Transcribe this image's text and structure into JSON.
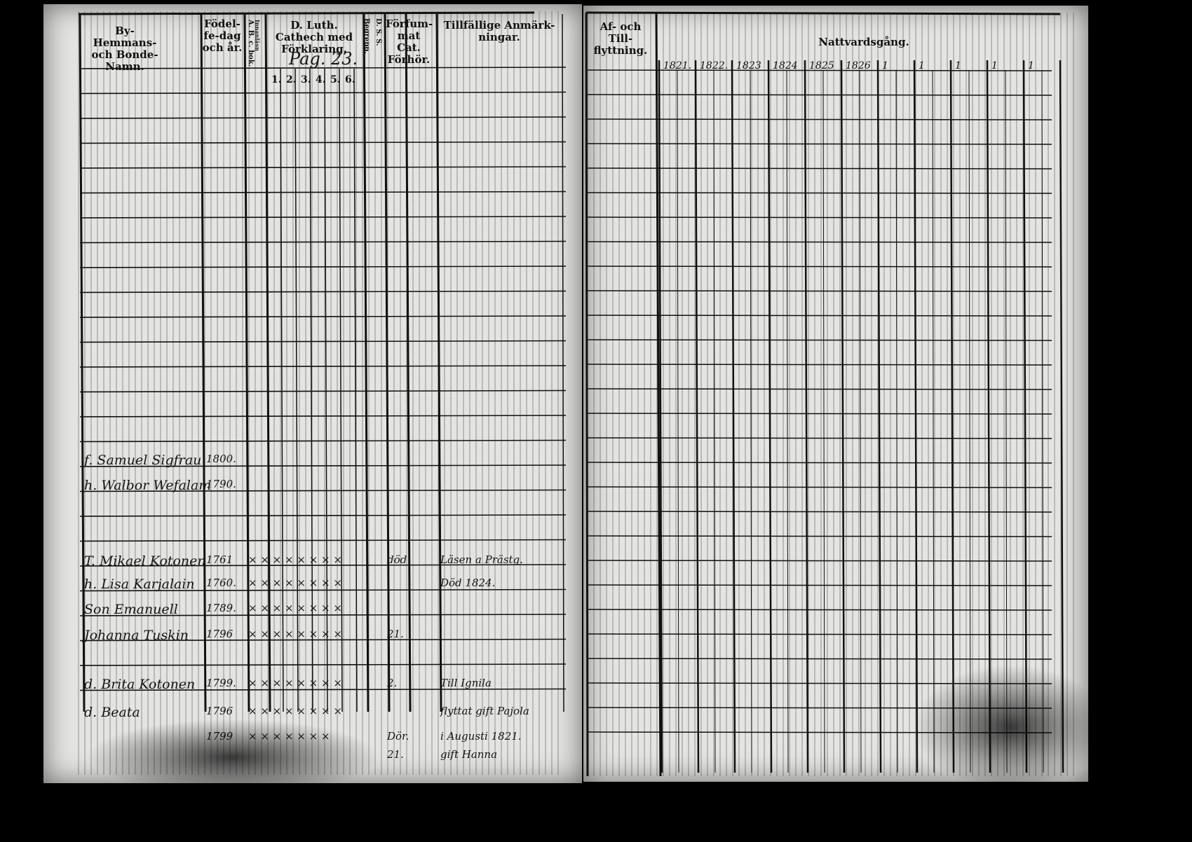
{
  "left_page": {
    "headers": {
      "name": "By- Hemmans-och Bonde-Namn.",
      "birth": "Födel-fe-dag och år.",
      "abc": "A. B. c. bok.",
      "innanlasn": "Innanläsn",
      "catech": "D. Luth. Cathech med Förklaring.",
      "page_note": "Pag. 23.",
      "catech_subcols": [
        "1.",
        "2.",
        "3.",
        "4.",
        "5.",
        "6."
      ],
      "begrepp": "Begrepp.",
      "dss": "D. S. S.",
      "forsummat": "Förfum-mat Cat. Förhör.",
      "anmarkningar": "Tillfällige Anmärk-ningar."
    },
    "entries": [
      {
        "name": "f. Samuel Sigfrau",
        "year": "1800.",
        "marks": "",
        "forhor": "",
        "note": ""
      },
      {
        "name": "h. Walbor Wefalam",
        "year": "1790.",
        "marks": "",
        "forhor": "",
        "note": ""
      },
      {
        "name": "T. Mikael Kotonen",
        "year": "1761",
        "marks": "× × × × × × × ×",
        "forhor": "död",
        "note": "Läsen a Prästg."
      },
      {
        "name": "h. Lisa Karjalain",
        "year": "1760.",
        "marks": "× × × × × × × ×",
        "forhor": "",
        "note": "Död 1824."
      },
      {
        "name": "Son Emanuell",
        "year": "1789.",
        "marks": "× × × × × × × ×",
        "forhor": "",
        "note": ""
      },
      {
        "name": "Johanna Tuskin",
        "year": "1796",
        "marks": "× × × × × × × ×",
        "forhor": "21.",
        "note": ""
      },
      {
        "name": "d. Brita Kotonen",
        "year": "1799.",
        "marks": "× × × × × × × ×",
        "forhor": "2.",
        "note": "Till Ignila"
      },
      {
        "name": "d. Beata",
        "year": "1796",
        "marks": "× × × × × × × ×",
        "forhor": "",
        "note": "flyttat gift Pajola"
      },
      {
        "name": "",
        "year": "1799",
        "marks": "× × × × × × ×",
        "forhor": "Dör.",
        "note": "i Augusti 1821."
      },
      {
        "name": "",
        "year": "",
        "marks": "",
        "forhor": "21.",
        "note": "gift Hanna"
      }
    ]
  },
  "right_page": {
    "headers": {
      "flyttning": "Af- och Till-flyttning.",
      "nattvard": "Nattvardsgång.",
      "years": [
        "1821.",
        "1822.",
        "1823",
        "1824",
        "1825",
        "1826",
        "1",
        "1",
        "1",
        "1",
        "1"
      ]
    }
  }
}
